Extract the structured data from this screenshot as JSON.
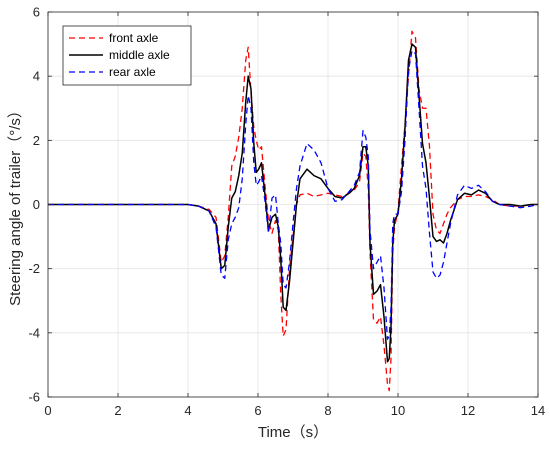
{
  "chart_data": {
    "type": "line",
    "title": "",
    "xlabel": "Time（s）",
    "ylabel": "Steering angle of trailer（°/s）",
    "xlim": [
      0,
      14
    ],
    "ylim": [
      -6,
      6
    ],
    "xticks": [
      0,
      2,
      4,
      6,
      8,
      10,
      12,
      14
    ],
    "yticks": [
      -6,
      -4,
      -2,
      0,
      2,
      4,
      6
    ],
    "grid": true,
    "legend_position": "top-left",
    "series": [
      {
        "name": "front axle",
        "color": "#ff0000",
        "dash": "dashed",
        "x": [
          0,
          4.0,
          4.3,
          4.6,
          4.8,
          4.95,
          5.05,
          5.15,
          5.25,
          5.35,
          5.45,
          5.55,
          5.65,
          5.72,
          5.8,
          5.88,
          5.95,
          6.02,
          6.1,
          6.2,
          6.3,
          6.4,
          6.5,
          6.58,
          6.65,
          6.72,
          6.8,
          6.9,
          7.0,
          7.1,
          7.2,
          7.4,
          7.6,
          7.8,
          8.0,
          8.2,
          8.4,
          8.6,
          8.75,
          8.9,
          9.0,
          9.08,
          9.15,
          9.2,
          9.3,
          9.4,
          9.5,
          9.6,
          9.7,
          9.75,
          9.8,
          9.85,
          9.9,
          10.0,
          10.1,
          10.2,
          10.3,
          10.4,
          10.5,
          10.6,
          10.7,
          10.8,
          10.9,
          11.0,
          11.1,
          11.2,
          11.3,
          11.4,
          11.5,
          11.7,
          11.9,
          12.1,
          12.3,
          12.5,
          12.7,
          12.9,
          13.2,
          13.5,
          13.8,
          14.0
        ],
        "y": [
          0,
          0,
          -0.05,
          -0.15,
          -0.4,
          -1.8,
          -1.6,
          -0.4,
          1.2,
          1.5,
          2.1,
          3.0,
          4.5,
          4.9,
          3.5,
          2.4,
          2.0,
          1.7,
          1.8,
          0.6,
          -0.5,
          -0.9,
          -0.5,
          -0.8,
          -2.8,
          -4.1,
          -3.9,
          -2.0,
          -1.0,
          0.0,
          0.3,
          0.35,
          0.25,
          0.3,
          0.35,
          0.3,
          0.25,
          0.35,
          0.45,
          0.7,
          1.6,
          1.5,
          0.5,
          -1.5,
          -3.6,
          -3.7,
          -3.5,
          -4.4,
          -5.6,
          -5.8,
          -4.8,
          -1.5,
          -0.7,
          -0.2,
          1.2,
          2.5,
          4.0,
          5.4,
          5.2,
          3.6,
          3.0,
          3.0,
          1.8,
          -0.3,
          -0.8,
          -0.9,
          -0.6,
          -0.3,
          -0.1,
          0.15,
          0.25,
          0.25,
          0.3,
          0.25,
          0.15,
          0.0,
          -0.05,
          -0.05,
          0.0,
          0.0
        ]
      },
      {
        "name": "middle axle",
        "color": "#000000",
        "dash": "solid",
        "x": [
          0,
          4.0,
          4.3,
          4.6,
          4.8,
          4.95,
          5.05,
          5.15,
          5.25,
          5.35,
          5.45,
          5.55,
          5.65,
          5.72,
          5.8,
          5.88,
          5.95,
          6.02,
          6.1,
          6.2,
          6.3,
          6.4,
          6.5,
          6.58,
          6.65,
          6.72,
          6.8,
          6.9,
          7.0,
          7.1,
          7.2,
          7.4,
          7.6,
          7.8,
          8.0,
          8.2,
          8.4,
          8.6,
          8.75,
          8.9,
          9.0,
          9.08,
          9.15,
          9.2,
          9.3,
          9.4,
          9.5,
          9.6,
          9.7,
          9.75,
          9.8,
          9.85,
          9.9,
          10.0,
          10.1,
          10.2,
          10.3,
          10.4,
          10.5,
          10.6,
          10.7,
          10.8,
          10.9,
          11.0,
          11.1,
          11.2,
          11.3,
          11.4,
          11.5,
          11.7,
          11.9,
          12.1,
          12.3,
          12.5,
          12.7,
          12.9,
          13.2,
          13.5,
          13.8,
          14.0
        ],
        "y": [
          0,
          0,
          -0.05,
          -0.2,
          -0.6,
          -2.0,
          -1.9,
          -0.7,
          0.2,
          0.4,
          0.9,
          1.6,
          3.2,
          4.0,
          3.6,
          1.9,
          1.0,
          1.1,
          1.3,
          0.3,
          -0.8,
          -0.4,
          -0.3,
          -0.7,
          -1.7,
          -3.2,
          -3.3,
          -2.4,
          -1.2,
          0.0,
          0.8,
          1.1,
          0.9,
          0.8,
          0.5,
          0.25,
          0.2,
          0.35,
          0.5,
          0.9,
          1.8,
          1.8,
          1.2,
          -1.2,
          -2.8,
          -2.7,
          -2.5,
          -3.5,
          -4.9,
          -4.8,
          -3.8,
          -1.2,
          -0.5,
          -0.3,
          0.8,
          2.4,
          4.5,
          5.0,
          4.9,
          3.4,
          1.9,
          1.3,
          0.2,
          -1.0,
          -1.15,
          -1.1,
          -1.2,
          -0.9,
          -0.5,
          0.15,
          0.35,
          0.3,
          0.45,
          0.35,
          0.1,
          0.0,
          0.0,
          -0.05,
          0.0,
          0.0
        ]
      },
      {
        "name": "rear axle",
        "color": "#0000ff",
        "dash": "dashed",
        "x": [
          0,
          4.0,
          4.3,
          4.6,
          4.8,
          4.95,
          5.05,
          5.15,
          5.25,
          5.35,
          5.45,
          5.55,
          5.65,
          5.72,
          5.8,
          5.88,
          5.95,
          6.02,
          6.1,
          6.2,
          6.3,
          6.4,
          6.5,
          6.58,
          6.65,
          6.72,
          6.8,
          6.9,
          7.0,
          7.1,
          7.2,
          7.4,
          7.6,
          7.8,
          8.0,
          8.2,
          8.4,
          8.6,
          8.75,
          8.9,
          9.0,
          9.08,
          9.15,
          9.2,
          9.3,
          9.4,
          9.5,
          9.6,
          9.7,
          9.75,
          9.8,
          9.85,
          9.9,
          10.0,
          10.1,
          10.2,
          10.3,
          10.4,
          10.5,
          10.6,
          10.7,
          10.8,
          10.9,
          11.0,
          11.1,
          11.2,
          11.3,
          11.4,
          11.5,
          11.7,
          11.9,
          12.1,
          12.3,
          12.5,
          12.7,
          12.9,
          13.2,
          13.5,
          13.8,
          14.0
        ],
        "y": [
          0,
          0,
          -0.05,
          -0.2,
          -0.7,
          -2.2,
          -2.3,
          -1.1,
          -0.6,
          -0.4,
          -0.1,
          0.8,
          2.5,
          3.4,
          3.0,
          1.3,
          0.6,
          0.7,
          0.9,
          0.1,
          -0.9,
          0.2,
          0.3,
          -0.6,
          -1.2,
          -2.5,
          -2.6,
          -1.8,
          -0.6,
          0.5,
          1.2,
          1.9,
          1.7,
          1.3,
          0.5,
          0.1,
          0.15,
          0.4,
          0.6,
          1.0,
          2.3,
          2.1,
          1.5,
          -0.8,
          -2.0,
          -1.8,
          -1.6,
          -2.6,
          -4.2,
          -4.1,
          -3.2,
          -0.6,
          -0.3,
          -0.3,
          0.4,
          2.0,
          4.2,
          4.8,
          4.7,
          3.0,
          1.2,
          0.5,
          -0.9,
          -2.1,
          -2.3,
          -2.2,
          -1.8,
          -1.2,
          -0.6,
          0.3,
          0.6,
          0.5,
          0.6,
          0.4,
          0.1,
          0.0,
          -0.05,
          -0.1,
          -0.05,
          0.0
        ]
      }
    ]
  }
}
